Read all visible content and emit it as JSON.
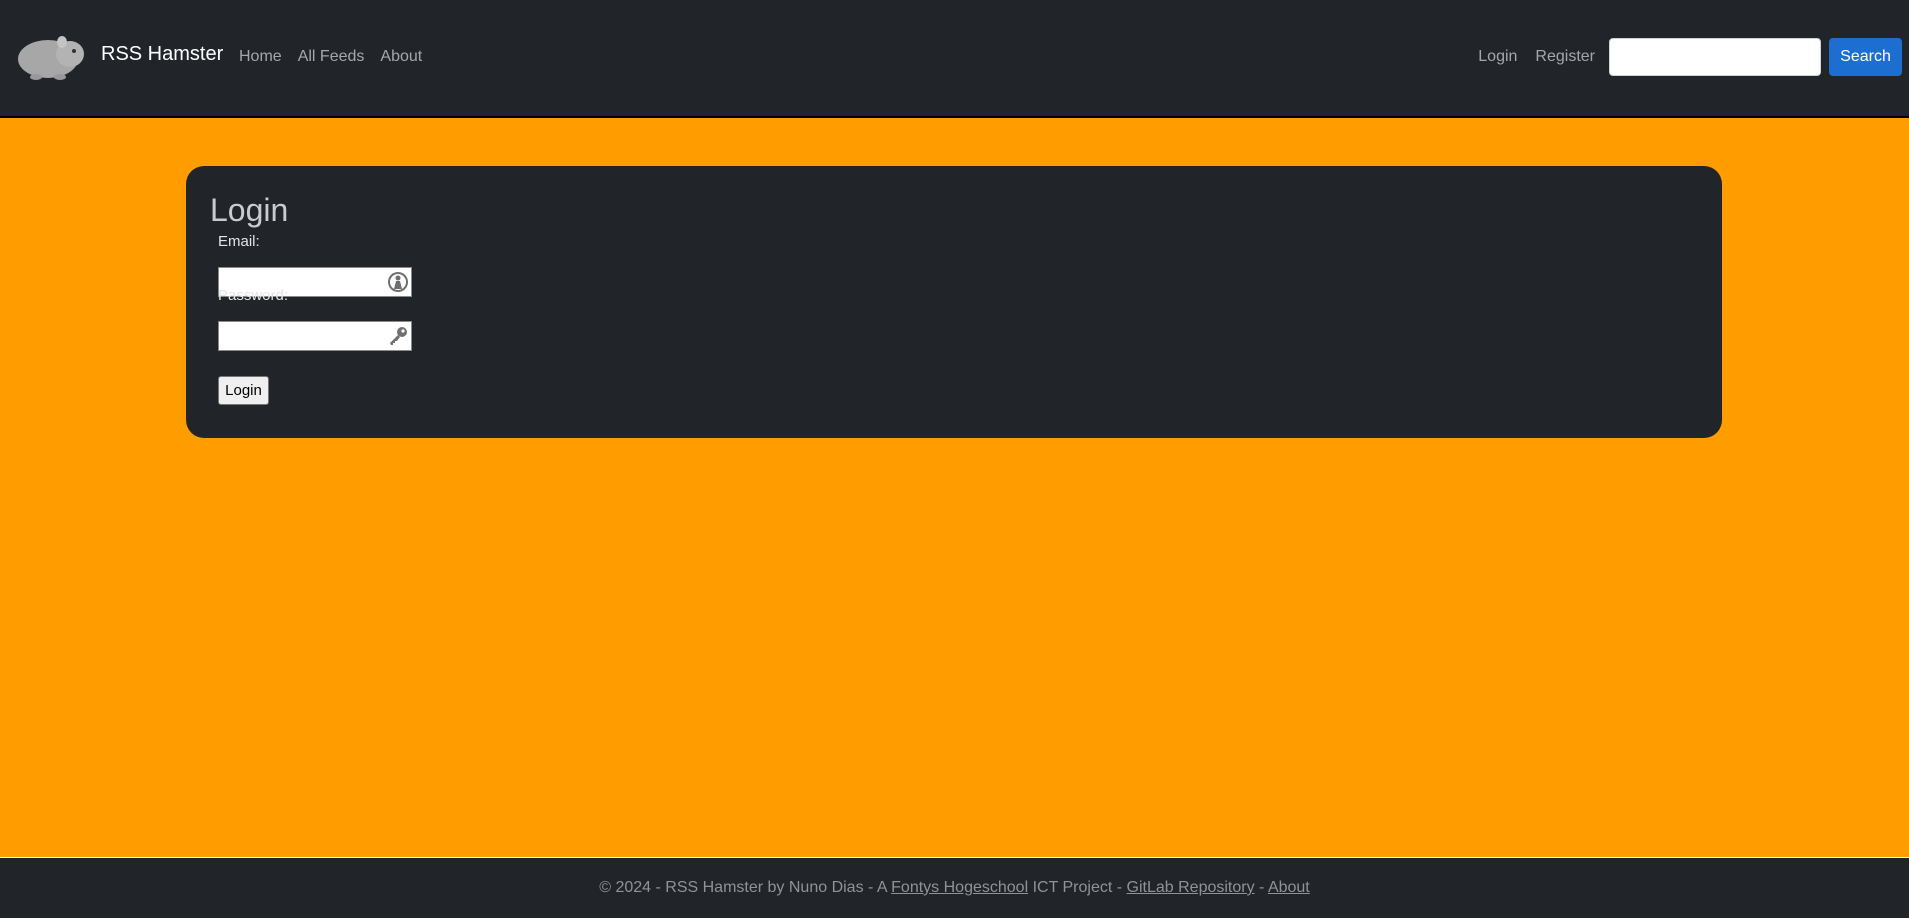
{
  "navbar": {
    "brand": "RSS Hamster",
    "logo_icon": "hamster-logo-icon",
    "nav_items": [
      "Home",
      "All Feeds",
      "About"
    ],
    "auth_items": [
      "Login",
      "Register"
    ],
    "search": {
      "placeholder": "",
      "value": "",
      "button_label": "Search"
    },
    "background": "#212529",
    "accent": "#1c6fd0"
  },
  "page": {
    "background": "#ff9c00"
  },
  "login_form": {
    "title": "Login",
    "email_label": "Email:",
    "email_value": "",
    "email_icon": "user-autofill-icon",
    "password_label": "Password:",
    "password_value": "",
    "password_icon": "key-icon",
    "submit_label": "Login"
  },
  "footer": {
    "prefix": "© 2024 - RSS Hamster by Nuno Dias - A",
    "link_school": "Fontys Hogeschool",
    "mid": "ICT Project -",
    "link_repo": "GitLab Repository",
    "sep": "-",
    "link_about": "About"
  }
}
